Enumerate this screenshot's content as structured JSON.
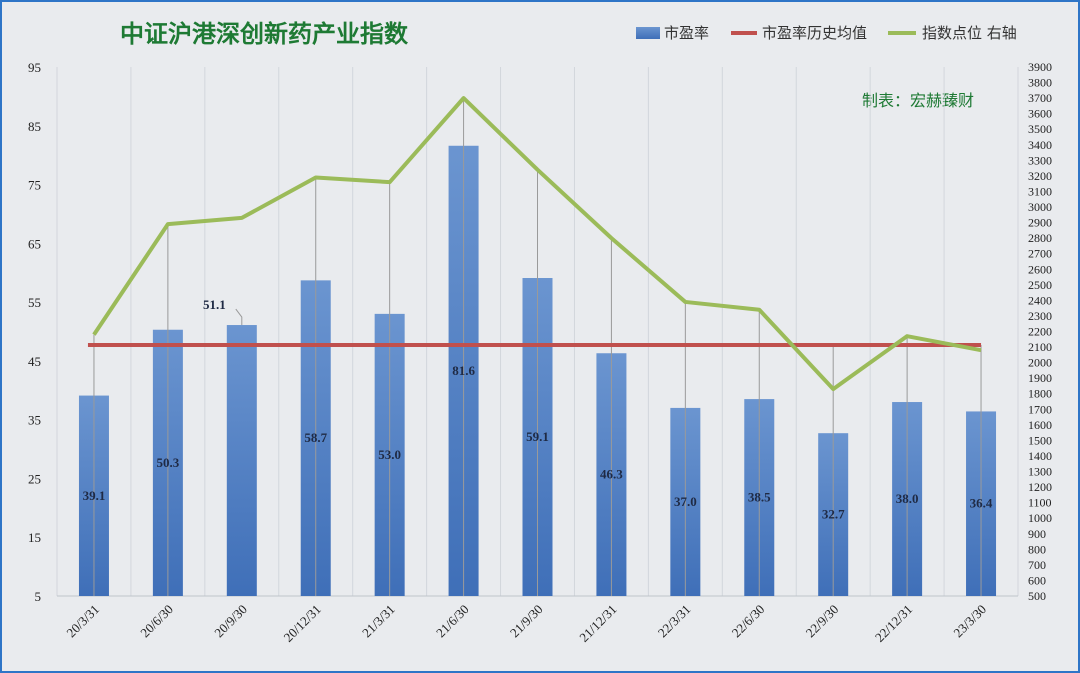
{
  "chart_data": {
    "type": "bar",
    "title": "中证沪港深创新药产业指数",
    "credit": "制表：宏赫臻财",
    "categories": [
      "20/3/31",
      "20/6/30",
      "20/9/30",
      "20/12/31",
      "21/3/31",
      "21/6/30",
      "21/9/30",
      "21/12/31",
      "22/3/31",
      "22/6/30",
      "22/9/30",
      "22/12/31",
      "23/3/30"
    ],
    "legend": [
      "市盈率",
      "市盈率历史均值",
      "指数点位 右轴"
    ],
    "series": [
      {
        "name": "市盈率",
        "kind": "bar",
        "axis": "left",
        "color": "#4f7fc4",
        "values": [
          39.1,
          50.3,
          51.1,
          58.7,
          53.0,
          81.6,
          59.1,
          46.3,
          37.0,
          38.5,
          32.7,
          38.0,
          36.4
        ]
      },
      {
        "name": "市盈率历史均值",
        "kind": "line",
        "axis": "left",
        "color": "#c0504d",
        "values": [
          47.7,
          47.7,
          47.7,
          47.7,
          47.7,
          47.7,
          47.7,
          47.7,
          47.7,
          47.7,
          47.7,
          47.7,
          47.7
        ]
      },
      {
        "name": "指数点位",
        "kind": "line",
        "axis": "right",
        "color": "#9bbb59",
        "values": [
          2180,
          2890,
          2930,
          3190,
          3160,
          3700,
          3240,
          2800,
          2390,
          2340,
          1830,
          2170,
          2080
        ]
      }
    ],
    "ylim_left": [
      5,
      95
    ],
    "yticks_left": [
      5,
      15,
      25,
      35,
      45,
      55,
      65,
      75,
      85,
      95
    ],
    "ylim_right": [
      500,
      3900
    ],
    "ytick_step_right": 100,
    "grid": "vertical",
    "legend_position": "top-right",
    "colors": {
      "bar_top": "#6b95d0",
      "bar_bottom": "#3f6fb8",
      "mean": "#c0504d",
      "index": "#9bbb59",
      "title": "#1e7a34",
      "plot_bg": "#e9ebee"
    }
  }
}
